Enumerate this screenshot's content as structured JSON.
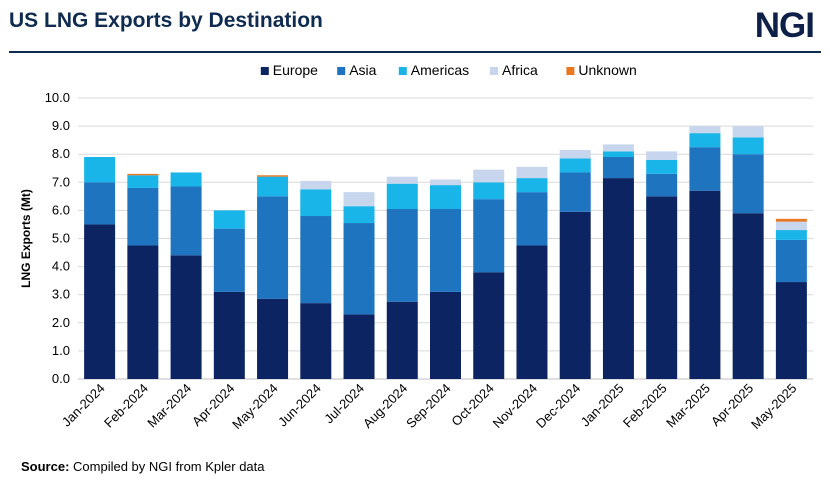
{
  "header": {
    "title": "US LNG Exports by Destination",
    "logo": "NGI"
  },
  "footer": {
    "source_label": "Source:",
    "source_text": "Compiled by NGI from Kpler data"
  },
  "colors": {
    "Europe": "#0c2461",
    "Asia": "#1f74c0",
    "Americas": "#19b4e8",
    "Africa": "#c7d6ec",
    "Unknown": "#e87722"
  },
  "chart_data": {
    "type": "bar",
    "stacked": true,
    "title": "US LNG Exports by Destination",
    "ylabel": "LNG Exports (Mt)",
    "xlabel": "",
    "ylim": [
      0,
      10
    ],
    "yticks": [
      "0.0",
      "1.0",
      "2.0",
      "3.0",
      "4.0",
      "5.0",
      "6.0",
      "7.0",
      "8.0",
      "9.0",
      "10.0"
    ],
    "grid": true,
    "legend_position": "top-center",
    "categories": [
      "Jan-2024",
      "Feb-2024",
      "Mar-2024",
      "Apr-2024",
      "May-2024",
      "Jun-2024",
      "Jul-2024",
      "Aug-2024",
      "Sep-2024",
      "Oct-2024",
      "Nov-2024",
      "Dec-2024",
      "Jan-2025",
      "Feb-2025",
      "Mar-2025",
      "Apr-2025",
      "May-2025"
    ],
    "series": [
      {
        "name": "Europe",
        "values": [
          5.5,
          4.75,
          4.4,
          3.1,
          2.85,
          2.7,
          2.3,
          2.75,
          3.1,
          3.8,
          4.75,
          5.95,
          7.15,
          6.5,
          6.7,
          5.9,
          3.45
        ]
      },
      {
        "name": "Asia",
        "values": [
          1.5,
          2.05,
          2.45,
          2.25,
          3.65,
          3.1,
          3.25,
          3.3,
          2.95,
          2.6,
          1.9,
          1.4,
          0.75,
          0.8,
          1.55,
          2.1,
          1.5
        ]
      },
      {
        "name": "Americas",
        "values": [
          0.9,
          0.45,
          0.5,
          0.65,
          0.7,
          0.95,
          0.6,
          0.9,
          0.85,
          0.6,
          0.5,
          0.5,
          0.2,
          0.5,
          0.5,
          0.6,
          0.35
        ]
      },
      {
        "name": "Africa",
        "values": [
          0.0,
          0.0,
          0.0,
          0.0,
          0.0,
          0.3,
          0.5,
          0.25,
          0.2,
          0.45,
          0.4,
          0.3,
          0.25,
          0.3,
          0.25,
          0.4,
          0.3
        ]
      },
      {
        "name": "Unknown",
        "values": [
          0.0,
          0.05,
          0.0,
          0.0,
          0.05,
          0.0,
          0.0,
          0.0,
          0.0,
          0.0,
          0.0,
          0.0,
          0.0,
          0.0,
          0.0,
          0.0,
          0.1
        ]
      }
    ]
  }
}
